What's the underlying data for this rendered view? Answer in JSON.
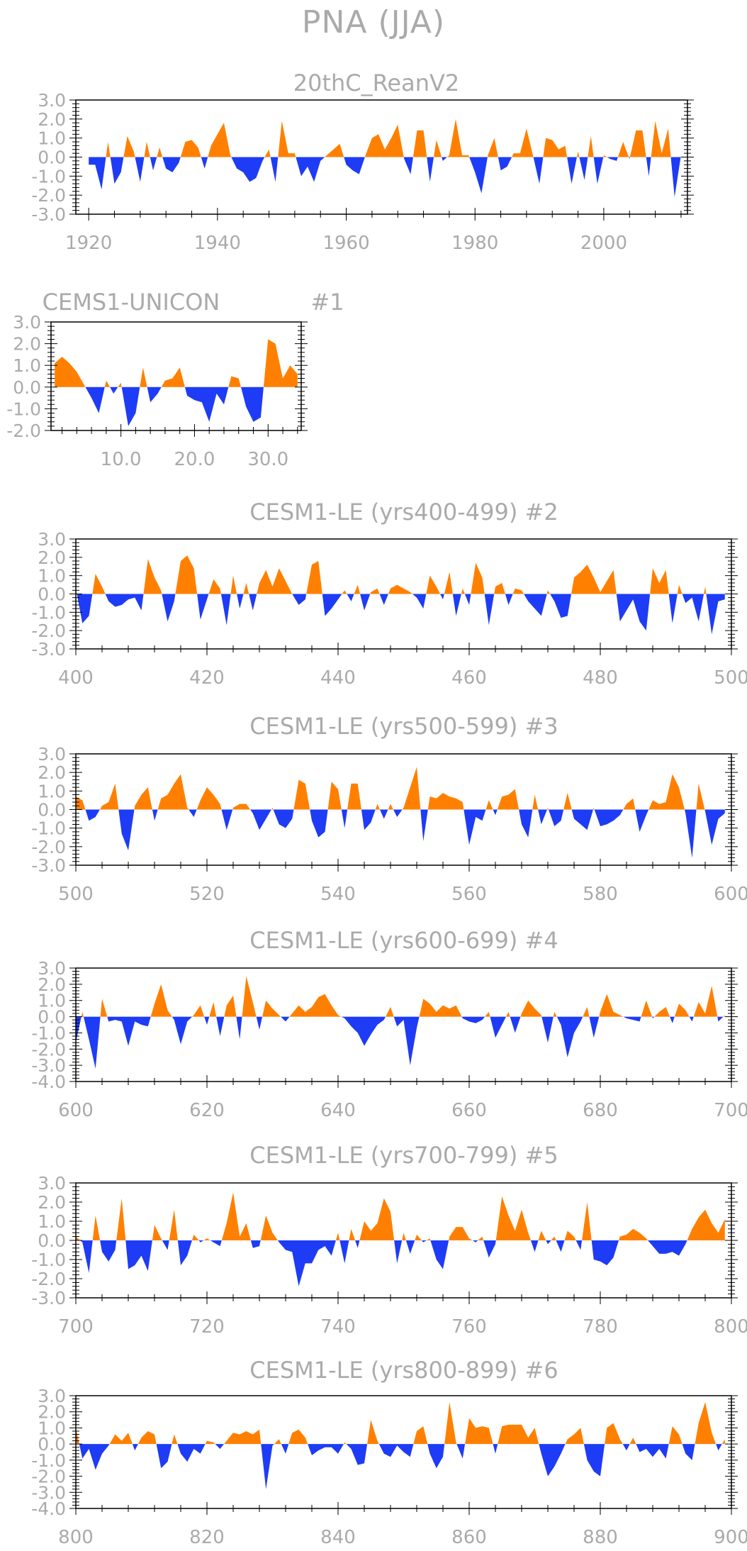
{
  "title": "PNA (JJA)",
  "colors": {
    "positive": "#FF8000",
    "negative": "#1E3CF5",
    "frame": "#000000",
    "text": "#AAAAAA"
  },
  "chart_data": [
    {
      "type": "area",
      "title": "20thC_ReanV2",
      "label": "",
      "xlim": [
        1918,
        2013
      ],
      "ylim": [
        -3,
        3
      ],
      "yticks": [
        "3.0",
        "2.0",
        "1.0",
        "0.0",
        "-1.0",
        "-2.0",
        "-3.0"
      ],
      "xticks": [
        1920,
        1940,
        1960,
        1980,
        2000
      ],
      "x_start": 1920,
      "values": [
        -0.4,
        -0.4,
        -1.7,
        0.8,
        -1.4,
        -0.8,
        1.1,
        0.3,
        -1.3,
        0.8,
        -0.7,
        0.5,
        -0.6,
        -0.8,
        -0.3,
        0.8,
        0.9,
        0.5,
        -0.6,
        0.6,
        1.2,
        1.8,
        0.1,
        -0.6,
        -0.8,
        -1.3,
        -1.1,
        -0.2,
        0.4,
        -1.3,
        1.9,
        0.2,
        0.2,
        -1.0,
        -0.5,
        -1.3,
        -0.2,
        0.1,
        0.4,
        0.7,
        -0.4,
        -0.7,
        -0.9,
        0.1,
        1.0,
        1.2,
        0.4,
        1.0,
        1.7,
        -0.1,
        -0.9,
        1.4,
        1.4,
        -1.3,
        0.9,
        -0.2,
        0.1,
        2.0,
        0.1,
        0.1,
        -0.8,
        -1.9,
        0.1,
        1.0,
        -0.7,
        -0.5,
        0.2,
        0.2,
        1.5,
        0.1,
        -1.4,
        1.0,
        0.9,
        0.4,
        0.6,
        -1.4,
        0.3,
        -1.2,
        1.1,
        -1.4,
        0.1,
        -0.1,
        -0.2,
        0.8,
        -0.1,
        1.4,
        1.4,
        -1.0,
        1.9,
        0.2,
        1.5,
        -2.1,
        0.1
      ]
    },
    {
      "type": "area",
      "title": "CEMS1-UNICON",
      "label": "#1",
      "xlim": [
        0.5,
        34.5
      ],
      "ylim": [
        -2,
        3
      ],
      "yticks": [
        "3.0",
        "2.0",
        "1.0",
        "0.0",
        "-1.0",
        "-2.0"
      ],
      "xticks": [
        10,
        20,
        30
      ],
      "xtick_labels": [
        "10.0",
        "20.0",
        "30.0"
      ],
      "x_start": 1,
      "values": [
        1.1,
        1.4,
        1.1,
        0.7,
        0.1,
        -0.5,
        -1.2,
        0.3,
        -0.3,
        0.2,
        -1.8,
        -1.2,
        0.9,
        -0.7,
        -0.3,
        0.3,
        0.4,
        0.9,
        -0.4,
        -0.6,
        -0.7,
        -1.6,
        -0.3,
        -0.8,
        0.5,
        0.4,
        -0.9,
        -1.6,
        -1.4,
        2.2,
        2.0,
        0.4,
        1.0,
        0.6
      ]
    },
    {
      "type": "area",
      "title": "CESM1-LE (yrs400-499)",
      "label": "#2",
      "xlim": [
        400,
        500
      ],
      "ylim": [
        -3,
        3
      ],
      "yticks": [
        "3.0",
        "2.0",
        "1.0",
        "0.0",
        "-1.0",
        "-2.0",
        "-3.0"
      ],
      "xticks": [
        400,
        420,
        440,
        460,
        480,
        500
      ],
      "x_start": 400,
      "values": [
        0.3,
        -1.6,
        -1.2,
        1.1,
        0.4,
        -0.4,
        -0.7,
        -0.6,
        -0.3,
        -0.2,
        -0.9,
        1.9,
        0.9,
        0.2,
        -1.5,
        -0.4,
        1.8,
        2.1,
        1.4,
        -1.4,
        -0.3,
        0.8,
        0.3,
        -1.7,
        1.0,
        -0.8,
        0.6,
        -0.9,
        0.6,
        1.3,
        0.4,
        1.4,
        0.7,
        0.0,
        -0.6,
        -0.3,
        1.6,
        1.8,
        -1.2,
        -0.8,
        -0.3,
        0.2,
        -0.4,
        0.5,
        -0.9,
        0.1,
        0.3,
        -0.6,
        0.3,
        0.5,
        0.3,
        0.1,
        -0.2,
        -0.8,
        1.0,
        0.4,
        -0.3,
        1.2,
        -1.2,
        0.3,
        -0.6,
        1.7,
        0.9,
        -1.7,
        0.4,
        0.6,
        -0.6,
        0.3,
        0.2,
        -0.4,
        -0.8,
        -1.2,
        0.2,
        -0.4,
        -1.3,
        -1.2,
        0.9,
        1.2,
        1.6,
        0.9,
        0.1,
        0.7,
        1.3,
        -1.5,
        -0.9,
        -0.3,
        -1.5,
        -2.0,
        1.4,
        0.6,
        1.3,
        -1.6,
        0.5,
        -0.5,
        -0.2,
        -1.5,
        0.4,
        -2.2,
        -0.4,
        -0.3
      ]
    },
    {
      "type": "area",
      "title": "CESM1-LE (yrs500-599)",
      "label": "#3",
      "xlim": [
        500,
        600
      ],
      "ylim": [
        -3,
        3
      ],
      "yticks": [
        "3.0",
        "2.0",
        "1.0",
        "0.0",
        "-1.0",
        "-2.0",
        "-3.0"
      ],
      "xticks": [
        500,
        520,
        540,
        560,
        580,
        600
      ],
      "x_start": 500,
      "values": [
        0.7,
        0.5,
        -0.6,
        -0.4,
        0.2,
        0.4,
        1.4,
        -1.3,
        -2.2,
        0.2,
        0.8,
        1.2,
        -0.6,
        0.6,
        0.8,
        1.4,
        1.9,
        0.1,
        -0.4,
        0.5,
        1.2,
        0.8,
        0.3,
        -1.1,
        0.1,
        0.3,
        0.3,
        -0.2,
        -1.1,
        -0.5,
        0.1,
        -0.8,
        -1.0,
        -0.5,
        1.6,
        1.4,
        -0.6,
        -1.5,
        -1.2,
        1.5,
        1.1,
        -1.0,
        1.4,
        1.4,
        -1.1,
        -0.7,
        0.3,
        -0.5,
        0.3,
        -0.4,
        0.1,
        1.2,
        2.3,
        -1.7,
        0.7,
        0.6,
        0.9,
        0.7,
        0.6,
        0.4,
        -1.9,
        -0.4,
        -0.6,
        0.5,
        -0.3,
        0.7,
        0.8,
        1.1,
        -0.8,
        -1.5,
        0.8,
        -0.8,
        0.1,
        -0.9,
        -0.6,
        0.9,
        -0.5,
        -0.8,
        -1.1,
        0.1,
        -0.9,
        -0.8,
        -0.6,
        -0.3,
        0.3,
        0.6,
        -1.2,
        -0.3,
        0.5,
        0.3,
        0.4,
        1.9,
        1.2,
        -0.2,
        -2.6,
        1.4,
        -0.1,
        -1.9,
        -0.5,
        -0.2
      ]
    },
    {
      "type": "area",
      "title": "CESM1-LE (yrs600-699)",
      "label": "#4",
      "xlim": [
        600,
        700
      ],
      "ylim": [
        -4,
        3
      ],
      "yticks": [
        "3.0",
        "2.0",
        "1.0",
        "0.0",
        "-1.0",
        "-2.0",
        "-3.0",
        "-4.0"
      ],
      "xticks": [
        600,
        620,
        640,
        660,
        680,
        700
      ],
      "x_start": 600,
      "values": [
        -1.6,
        0.3,
        -1.4,
        -3.2,
        1.1,
        -0.3,
        -0.2,
        -0.3,
        -1.8,
        -0.3,
        -0.5,
        -0.6,
        0.8,
        2.0,
        0.4,
        -0.2,
        -1.7,
        -0.3,
        0.1,
        0.7,
        -0.5,
        0.9,
        -1.2,
        0.7,
        1.3,
        -1.4,
        2.5,
        0.9,
        -0.8,
        1.0,
        0.5,
        0.1,
        -0.3,
        0.2,
        0.7,
        0.3,
        0.6,
        1.2,
        1.4,
        0.7,
        0.1,
        -0.1,
        -0.6,
        -1.0,
        -1.8,
        -1.1,
        -0.5,
        -0.2,
        0.6,
        -0.6,
        -0.2,
        -3.0,
        -0.7,
        1.1,
        0.8,
        0.3,
        0.7,
        0.5,
        0.7,
        -0.1,
        -0.3,
        -0.4,
        -0.2,
        0.3,
        -1.3,
        -0.5,
        0.3,
        -1.0,
        0.2,
        1.0,
        0.5,
        0.1,
        -1.6,
        0.3,
        -0.5,
        -2.5,
        -1.0,
        -0.3,
        0.6,
        -1.3,
        0.3,
        1.4,
        0.3,
        0.1,
        -0.1,
        -0.2,
        -0.3,
        1.0,
        -0.1,
        0.3,
        0.6,
        -0.4,
        0.8,
        0.4,
        -0.3,
        0.9,
        0.2,
        1.9,
        -0.3,
        0.1
      ]
    },
    {
      "type": "area",
      "title": "CESM1-LE (yrs700-799)",
      "label": "#5",
      "xlim": [
        700,
        800
      ],
      "ylim": [
        -3,
        3
      ],
      "yticks": [
        "3.0",
        "2.0",
        "1.0",
        "0.0",
        "-1.0",
        "-2.0",
        "-3.0"
      ],
      "xticks": [
        700,
        720,
        740,
        760,
        780,
        800
      ],
      "x_start": 700,
      "values": [
        0.2,
        -0.1,
        -1.7,
        1.3,
        -0.6,
        -1.1,
        -0.5,
        2.2,
        -1.5,
        -1.3,
        -0.8,
        -1.6,
        0.8,
        0.1,
        -0.5,
        1.6,
        -1.3,
        -0.8,
        0.3,
        -0.1,
        0.1,
        -0.1,
        -0.3,
        0.9,
        2.5,
        0.2,
        0.9,
        -0.4,
        -0.3,
        1.3,
        0.4,
        -0.1,
        -0.5,
        -0.6,
        -2.4,
        -1.2,
        -1.2,
        -0.5,
        -0.3,
        -0.8,
        0.4,
        -1.2,
        0.6,
        -0.4,
        1.0,
        0.5,
        0.9,
        2.2,
        1.5,
        -1.2,
        0.4,
        -0.7,
        0.3,
        -0.1,
        0.1,
        -1.0,
        -1.5,
        0.2,
        0.7,
        0.7,
        0.1,
        -0.1,
        0.2,
        -0.9,
        -0.2,
        2.3,
        1.3,
        0.5,
        1.6,
        0.4,
        -0.6,
        0.5,
        -0.2,
        0.2,
        -0.6,
        0.5,
        0.2,
        -0.5,
        2.0,
        -1.0,
        -1.1,
        -1.3,
        -0.9,
        0.2,
        0.3,
        0.6,
        0.4,
        0.1,
        -0.3,
        -0.7,
        -0.7,
        -0.6,
        -0.8,
        -0.2,
        0.6,
        1.2,
        1.6,
        0.9,
        0.4,
        1.1
      ]
    },
    {
      "type": "area",
      "title": "CESM1-LE (yrs800-899)",
      "label": "#6",
      "xlim": [
        800,
        900
      ],
      "ylim": [
        -4,
        3
      ],
      "yticks": [
        "3.0",
        "2.0",
        "1.0",
        "0.0",
        "-1.0",
        "-2.0",
        "-3.0",
        "-4.0"
      ],
      "xticks": [
        800,
        820,
        840,
        860,
        880,
        900
      ],
      "x_start": 800,
      "values": [
        1.0,
        -0.9,
        -0.3,
        -1.6,
        -0.6,
        -0.1,
        0.6,
        0.2,
        0.7,
        -0.4,
        0.4,
        0.8,
        0.6,
        -1.5,
        -1.1,
        0.6,
        -0.6,
        -1.1,
        -0.3,
        -0.6,
        0.2,
        0.1,
        -0.3,
        0.2,
        0.7,
        0.6,
        0.8,
        0.6,
        0.9,
        -2.8,
        -0.1,
        0.3,
        -0.6,
        0.7,
        0.9,
        0.4,
        -0.7,
        -0.4,
        -0.2,
        -0.2,
        -0.6,
        0.1,
        -0.3,
        -1.3,
        -1.2,
        1.5,
        0.2,
        -0.6,
        -0.8,
        -0.1,
        -0.5,
        -0.8,
        0.8,
        1.1,
        -0.6,
        -1.5,
        -0.8,
        2.6,
        0.1,
        -0.9,
        1.6,
        1.0,
        1.1,
        1.0,
        -0.6,
        1.1,
        1.2,
        1.2,
        1.2,
        0.4,
        1.0,
        -0.6,
        -2.0,
        -1.4,
        -0.6,
        0.3,
        0.6,
        1.0,
        -1.0,
        -1.7,
        -2.0,
        1.0,
        1.3,
        0.3,
        -0.4,
        0.4,
        -0.5,
        -0.3,
        -0.8,
        -0.3,
        -0.9,
        1.1,
        0.6,
        -0.6,
        -1.0,
        1.3,
        2.6,
        0.7,
        -0.4,
        0.3
      ]
    }
  ]
}
